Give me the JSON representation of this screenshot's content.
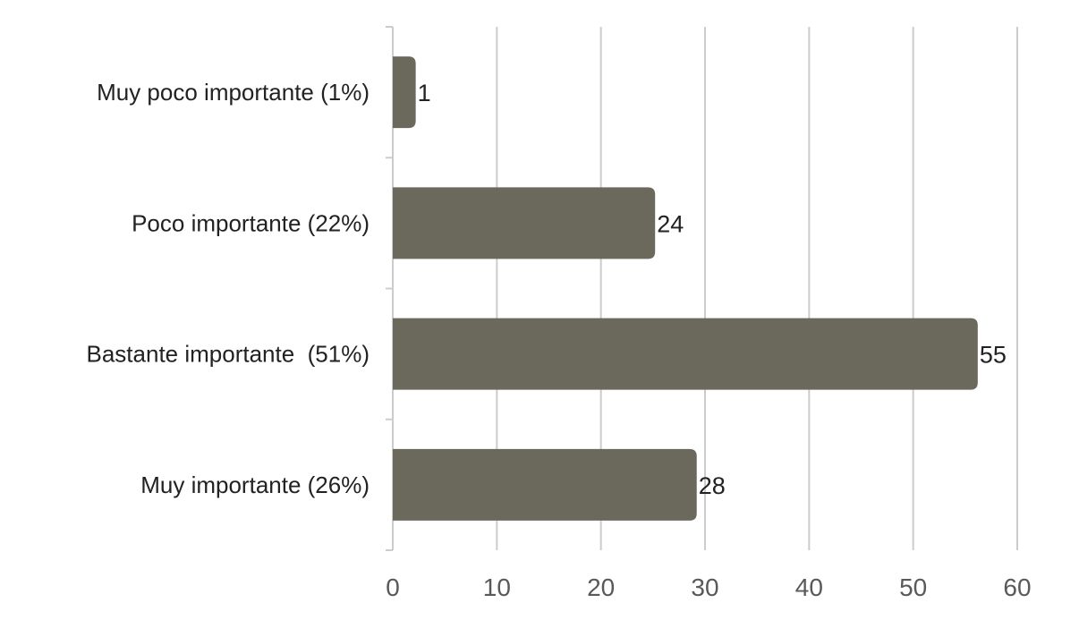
{
  "chart_data": {
    "type": "bar",
    "orientation": "horizontal",
    "title": "",
    "xlabel": "",
    "ylabel": "",
    "categories": [
      "Muy poco importante (1%)",
      "Poco importante (22%)",
      "Bastante importante  (51%)",
      "Muy importante (26%)"
    ],
    "values": [
      1,
      24,
      55,
      28
    ],
    "data_labels": [
      "1",
      "24",
      "55",
      "28"
    ],
    "xlim": [
      0,
      60
    ],
    "xticks": [
      0,
      10,
      20,
      30,
      40,
      50,
      60
    ],
    "xtick_labels": [
      "0",
      "10",
      "20",
      "30",
      "40",
      "50",
      "60"
    ],
    "grid": "vertical",
    "legend": "none",
    "colors": {
      "bar": "#6b695c",
      "grid": "#cccccc",
      "axis_text": "#595959",
      "label_text": "#222222"
    }
  }
}
